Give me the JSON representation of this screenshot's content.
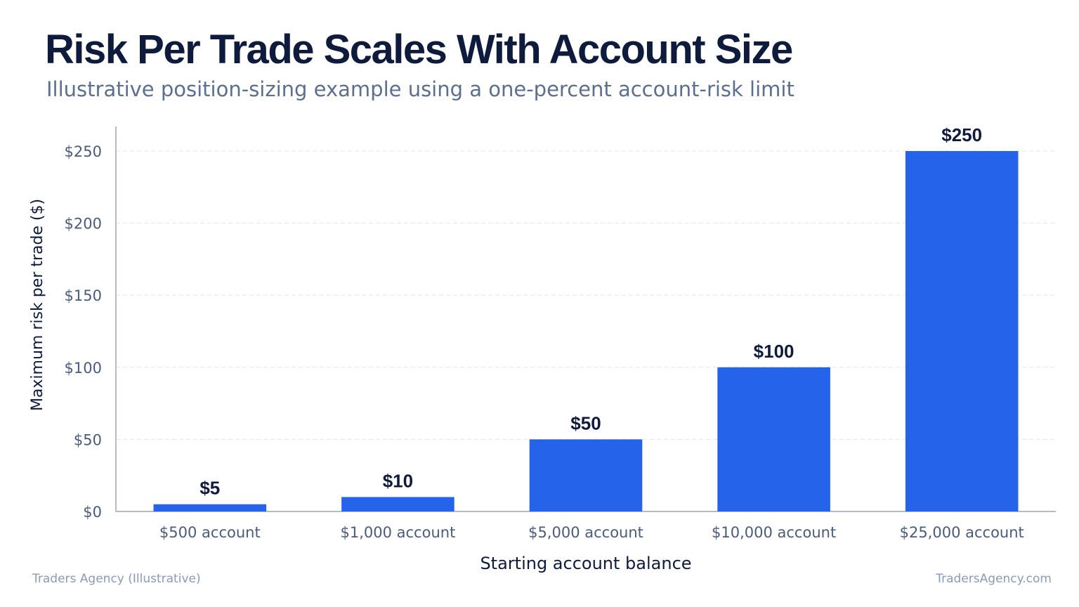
{
  "header": {
    "title": "Risk Per Trade Scales With Account Size",
    "subtitle": "Illustrative position-sizing example using a one-percent account-risk limit"
  },
  "footer": {
    "left": "Traders Agency (Illustrative)",
    "right": "TradersAgency.com"
  },
  "colors": {
    "bar": "#2563eb",
    "title": "#0f1b3d",
    "subtitle": "#5c6f8f",
    "tick_label": "#4a5b7c",
    "value_label": "#0f1b3d",
    "axis_label": "#0f1b3d",
    "grid": "#e3e7ee",
    "axis": "#9aa5b5",
    "footer": "#8a9ab6"
  },
  "chart_data": {
    "type": "bar",
    "categories": [
      "$500 account",
      "$1,000 account",
      "$5,000 account",
      "$10,000 account",
      "$25,000 account"
    ],
    "values": [
      5,
      10,
      50,
      100,
      250
    ],
    "value_labels": [
      "$5",
      "$10",
      "$50",
      "$100",
      "$250"
    ],
    "xlabel": "Starting account balance",
    "ylabel": "Maximum risk per trade ($)",
    "ylim": [
      0,
      250
    ],
    "yticks": [
      0,
      50,
      100,
      150,
      200,
      250
    ],
    "ytick_labels": [
      "$0",
      "$50",
      "$100",
      "$150",
      "$200",
      "$250"
    ],
    "grid": true,
    "grid_style": "dashed",
    "legend": "none"
  }
}
